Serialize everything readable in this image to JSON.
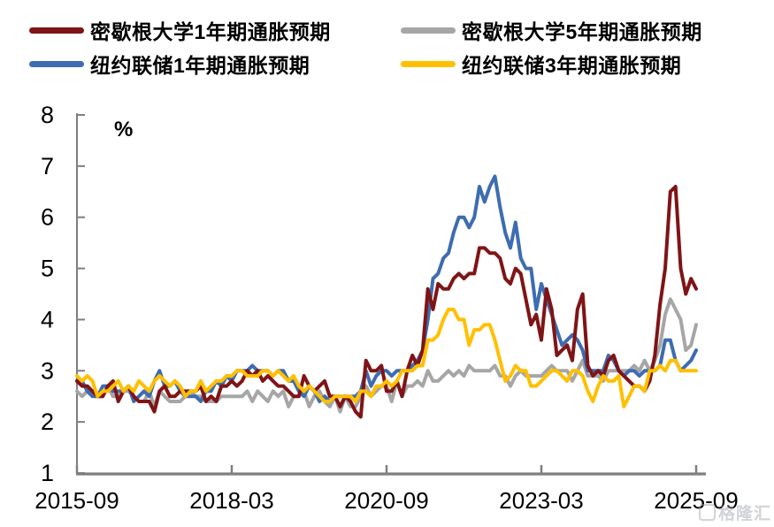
{
  "legend": {
    "items": [
      {
        "label": "密歇根大学1年期通胀预期",
        "color": "#7f1416"
      },
      {
        "label": "密歇根大学5年期通胀预期",
        "color": "#a6a6a6"
      },
      {
        "label": "纽约联储1年期通胀预期",
        "color": "#3e6cb0"
      },
      {
        "label": "纽约联储3年期通胀预期",
        "color": "#ffc000"
      }
    ]
  },
  "watermark": {
    "text": "格隆汇"
  },
  "chart_data": {
    "type": "line",
    "unit_label": "%",
    "x_start": "2015-09",
    "x_end": "2025-09",
    "x_frequency": "monthly",
    "x_tick_labels": [
      "2015-09",
      "2018-03",
      "2020-09",
      "2023-03",
      "2025-09"
    ],
    "y_ticks": [
      1,
      2,
      3,
      4,
      5,
      6,
      7,
      8
    ],
    "ylim": [
      1,
      8
    ],
    "grid": false,
    "axis_color": "#7f7f7f",
    "legend_position": "top",
    "series": [
      {
        "name": "密歇根大学5年期通胀预期",
        "color": "#a6a6a6",
        "values": [
          2.6,
          2.5,
          2.6,
          2.6,
          2.5,
          2.5,
          2.7,
          2.5,
          2.5,
          2.6,
          2.6,
          2.5,
          2.4,
          2.4,
          2.6,
          2.3,
          2.6,
          2.5,
          2.4,
          2.4,
          2.4,
          2.5,
          2.6,
          2.5,
          2.5,
          2.4,
          2.4,
          2.4,
          2.5,
          2.5,
          2.5,
          2.5,
          2.5,
          2.6,
          2.4,
          2.6,
          2.5,
          2.4,
          2.6,
          2.5,
          2.6,
          2.3,
          2.5,
          2.5,
          2.6,
          2.3,
          2.5,
          2.6,
          2.4,
          2.3,
          2.5,
          2.2,
          2.5,
          2.3,
          2.3,
          2.5,
          2.7,
          2.5,
          2.6,
          2.7,
          2.7,
          2.4,
          2.8,
          2.5,
          2.7,
          2.7,
          2.8,
          2.7,
          3.0,
          2.8,
          2.8,
          2.9,
          3.0,
          2.9,
          3.0,
          2.9,
          3.1,
          3.0,
          3.0,
          3.0,
          3.0,
          3.1,
          2.9,
          2.9,
          2.7,
          2.9,
          3.0,
          2.9,
          2.9,
          2.9,
          2.9,
          3.0,
          3.1,
          3.0,
          3.0,
          3.0,
          2.8,
          3.0,
          3.2,
          2.9,
          2.9,
          2.9,
          2.8,
          3.0,
          3.0,
          3.0,
          3.0,
          3.0,
          3.1,
          3.0,
          3.2,
          3.0,
          3.2,
          3.5,
          4.1,
          4.4,
          4.2,
          4.0,
          3.4,
          3.5,
          3.9
        ]
      },
      {
        "name": "纽约联储1年期通胀预期",
        "color": "#3e6cb0",
        "values": [
          2.8,
          2.8,
          2.6,
          2.5,
          2.5,
          2.7,
          2.7,
          2.6,
          2.6,
          2.6,
          2.7,
          2.4,
          2.5,
          2.6,
          2.5,
          2.8,
          3.0,
          2.7,
          2.7,
          2.8,
          2.6,
          2.5,
          2.5,
          2.5,
          2.4,
          2.6,
          2.6,
          2.8,
          2.7,
          2.9,
          2.8,
          3.0,
          3.0,
          3.0,
          3.1,
          3.0,
          3.0,
          3.0,
          2.9,
          3.0,
          3.0,
          2.8,
          2.8,
          2.6,
          2.5,
          2.7,
          2.6,
          2.4,
          2.5,
          2.4,
          2.5,
          2.5,
          2.5,
          2.5,
          2.5,
          2.6,
          3.0,
          2.7,
          2.9,
          3.0,
          3.0,
          2.9,
          3.0,
          3.0,
          3.0,
          3.1,
          3.2,
          3.4,
          4.0,
          4.8,
          4.9,
          5.2,
          5.3,
          5.7,
          6.0,
          6.0,
          5.8,
          6.0,
          6.6,
          6.3,
          6.6,
          6.8,
          6.2,
          5.7,
          5.4,
          5.9,
          5.2,
          5.0,
          5.0,
          4.2,
          4.7,
          4.4,
          4.1,
          3.8,
          3.5,
          3.6,
          3.7,
          3.6,
          3.4,
          3.0,
          3.0,
          3.0,
          3.0,
          3.3,
          3.2,
          3.0,
          2.9,
          3.0,
          3.0,
          2.9,
          3.0,
          3.0,
          3.0,
          3.1,
          3.6,
          3.6,
          3.2,
          3.0,
          3.1,
          3.2,
          3.4
        ]
      },
      {
        "name": "密歇根大学1年期通胀预期",
        "color": "#7f1416",
        "values": [
          2.8,
          2.7,
          2.7,
          2.6,
          2.5,
          2.5,
          2.7,
          2.8,
          2.4,
          2.6,
          2.7,
          2.5,
          2.4,
          2.4,
          2.4,
          2.2,
          2.6,
          2.7,
          2.5,
          2.5,
          2.6,
          2.6,
          2.6,
          2.6,
          2.7,
          2.4,
          2.5,
          2.4,
          2.7,
          2.7,
          2.8,
          2.7,
          2.8,
          3.0,
          2.9,
          3.0,
          2.8,
          2.9,
          2.8,
          2.7,
          2.7,
          2.6,
          2.5,
          2.5,
          2.9,
          2.7,
          2.6,
          2.7,
          2.8,
          2.5,
          2.5,
          2.3,
          2.5,
          2.4,
          2.2,
          2.1,
          3.2,
          3.0,
          3.0,
          3.1,
          2.6,
          2.6,
          2.8,
          2.5,
          3.0,
          3.3,
          3.1,
          3.4,
          4.6,
          4.2,
          4.7,
          4.6,
          4.6,
          4.8,
          4.9,
          4.8,
          4.9,
          4.9,
          5.4,
          5.4,
          5.3,
          5.3,
          5.2,
          4.8,
          4.7,
          5.0,
          4.9,
          4.4,
          3.9,
          4.1,
          3.6,
          4.6,
          4.2,
          3.3,
          3.4,
          3.5,
          3.2,
          4.2,
          4.5,
          3.1,
          2.9,
          3.0,
          2.9,
          3.2,
          3.3,
          3.0,
          2.9,
          2.8,
          2.7,
          2.7,
          2.6,
          2.8,
          3.3,
          4.3,
          5.0,
          6.5,
          6.6,
          5.0,
          4.5,
          4.8,
          4.6
        ]
      },
      {
        "name": "纽约联储3年期通胀预期",
        "color": "#ffc000",
        "values": [
          2.9,
          2.8,
          2.9,
          2.8,
          2.5,
          2.6,
          2.6,
          2.7,
          2.8,
          2.6,
          2.7,
          2.6,
          2.8,
          2.7,
          2.6,
          2.8,
          2.9,
          2.8,
          2.7,
          2.8,
          2.7,
          2.5,
          2.6,
          2.6,
          2.8,
          2.6,
          2.7,
          2.8,
          2.8,
          2.9,
          2.9,
          3.0,
          3.0,
          2.9,
          2.9,
          2.9,
          3.0,
          3.0,
          2.9,
          3.0,
          2.9,
          2.8,
          2.9,
          2.7,
          2.6,
          2.7,
          2.6,
          2.5,
          2.4,
          2.4,
          2.5,
          2.5,
          2.5,
          2.5,
          2.4,
          2.6,
          2.6,
          2.5,
          2.7,
          2.7,
          2.8,
          2.7,
          2.8,
          3.0,
          3.0,
          3.0,
          3.1,
          3.1,
          3.6,
          3.6,
          3.7,
          4.0,
          4.2,
          4.2,
          4.0,
          4.0,
          3.5,
          3.8,
          3.8,
          3.9,
          3.9,
          3.6,
          3.2,
          2.8,
          2.9,
          3.1,
          3.0,
          3.0,
          2.7,
          2.7,
          2.8,
          2.9,
          3.0,
          3.0,
          2.9,
          2.8,
          3.0,
          3.0,
          2.9,
          2.6,
          2.4,
          2.7,
          2.9,
          2.8,
          2.8,
          2.9,
          2.3,
          2.5,
          2.7,
          2.7,
          2.6,
          3.0,
          3.0,
          3.1,
          3.0,
          3.2,
          3.2,
          3.0,
          3.0,
          3.0,
          3.0
        ]
      }
    ]
  }
}
